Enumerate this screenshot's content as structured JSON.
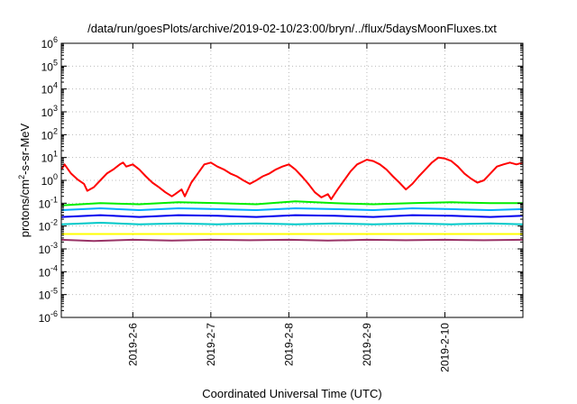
{
  "chart_data": {
    "type": "line",
    "title": "/data/run/goesPlots/archive/2019-02-10/23:00/bryn/../flux/5daysMoonFluxes.txt",
    "xlabel": "Coordinated Universal Time (UTC)",
    "ylabel_parts": {
      "pre": "protons/cm",
      "sup": "2",
      "post": "-s-sr-MeV"
    },
    "y_scale": "log",
    "ylim": [
      1e-06,
      1000000.0
    ],
    "y_tick_exponents": [
      -6,
      -5,
      -4,
      -3,
      -2,
      -1,
      0,
      1,
      2,
      3,
      4,
      5,
      6
    ],
    "y_tick_base": "10",
    "xlim": [
      "2019-02-05T02:00",
      "2019-02-11T00:00"
    ],
    "x_ticks": [
      {
        "label": "2019-2-6",
        "t": "2019-02-06T00:00"
      },
      {
        "label": "2019-2-7",
        "t": "2019-02-07T00:00"
      },
      {
        "label": "2019-2-8",
        "t": "2019-02-08T00:00"
      },
      {
        "label": "2019-2-9",
        "t": "2019-02-09T00:00"
      },
      {
        "label": "2019-2-10",
        "t": "2019-02-10T00:00"
      }
    ],
    "grid": true,
    "series": [
      {
        "color": "#ff0000",
        "points": [
          [
            "2019-02-05T02:00",
            3
          ],
          [
            "2019-02-05T03:00",
            5
          ],
          [
            "2019-02-05T05:00",
            2
          ],
          [
            "2019-02-05T07:00",
            1.1
          ],
          [
            "2019-02-05T09:00",
            0.7
          ],
          [
            "2019-02-05T10:00",
            0.35
          ],
          [
            "2019-02-05T12:00",
            0.5
          ],
          [
            "2019-02-05T14:00",
            1
          ],
          [
            "2019-02-05T16:00",
            2
          ],
          [
            "2019-02-05T18:00",
            3
          ],
          [
            "2019-02-05T20:00",
            5
          ],
          [
            "2019-02-05T21:00",
            6
          ],
          [
            "2019-02-05T22:00",
            4
          ],
          [
            "2019-02-06T00:00",
            5
          ],
          [
            "2019-02-06T02:00",
            3
          ],
          [
            "2019-02-06T04:00",
            1.5
          ],
          [
            "2019-02-06T06:00",
            0.8
          ],
          [
            "2019-02-06T08:00",
            0.5
          ],
          [
            "2019-02-06T10:00",
            0.3
          ],
          [
            "2019-02-06T12:00",
            0.2
          ],
          [
            "2019-02-06T13:00",
            0.25
          ],
          [
            "2019-02-06T15:00",
            0.4
          ],
          [
            "2019-02-06T16:00",
            0.2
          ],
          [
            "2019-02-06T18:00",
            0.8
          ],
          [
            "2019-02-06T20:00",
            2
          ],
          [
            "2019-02-06T22:00",
            5
          ],
          [
            "2019-02-07T00:00",
            6
          ],
          [
            "2019-02-07T02:00",
            4
          ],
          [
            "2019-02-07T04:00",
            3
          ],
          [
            "2019-02-07T06:00",
            2
          ],
          [
            "2019-02-07T08:00",
            1.5
          ],
          [
            "2019-02-07T10:00",
            1
          ],
          [
            "2019-02-07T12:00",
            0.7
          ],
          [
            "2019-02-07T14:00",
            1
          ],
          [
            "2019-02-07T16:00",
            1.5
          ],
          [
            "2019-02-07T18:00",
            2
          ],
          [
            "2019-02-07T20:00",
            3
          ],
          [
            "2019-02-07T22:00",
            4
          ],
          [
            "2019-02-08T00:00",
            5
          ],
          [
            "2019-02-08T02:00",
            3
          ],
          [
            "2019-02-08T04:00",
            1.5
          ],
          [
            "2019-02-08T06:00",
            0.7
          ],
          [
            "2019-02-08T08:00",
            0.3
          ],
          [
            "2019-02-08T10:00",
            0.18
          ],
          [
            "2019-02-08T12:00",
            0.25
          ],
          [
            "2019-02-08T13:00",
            0.15
          ],
          [
            "2019-02-08T15:00",
            0.4
          ],
          [
            "2019-02-08T17:00",
            1
          ],
          [
            "2019-02-08T19:00",
            2.5
          ],
          [
            "2019-02-08T21:00",
            5
          ],
          [
            "2019-02-09T00:00",
            8
          ],
          [
            "2019-02-09T02:00",
            7
          ],
          [
            "2019-02-09T04:00",
            5
          ],
          [
            "2019-02-09T06:00",
            3
          ],
          [
            "2019-02-09T08:00",
            1.5
          ],
          [
            "2019-02-09T10:00",
            0.8
          ],
          [
            "2019-02-09T12:00",
            0.4
          ],
          [
            "2019-02-09T14:00",
            0.7
          ],
          [
            "2019-02-09T16:00",
            1.5
          ],
          [
            "2019-02-09T18:00",
            3
          ],
          [
            "2019-02-09T20:00",
            6
          ],
          [
            "2019-02-09T22:00",
            10
          ],
          [
            "2019-02-10T00:00",
            9
          ],
          [
            "2019-02-10T02:00",
            7
          ],
          [
            "2019-02-10T04:00",
            4
          ],
          [
            "2019-02-10T06:00",
            2
          ],
          [
            "2019-02-10T08:00",
            1.2
          ],
          [
            "2019-02-10T10:00",
            0.8
          ],
          [
            "2019-02-10T12:00",
            1
          ],
          [
            "2019-02-10T14:00",
            2
          ],
          [
            "2019-02-10T16:00",
            4
          ],
          [
            "2019-02-10T18:00",
            5
          ],
          [
            "2019-02-10T20:00",
            6
          ],
          [
            "2019-02-10T22:00",
            5
          ],
          [
            "2019-02-11T00:00",
            6
          ]
        ]
      },
      {
        "color": "#00ee00",
        "points": [
          [
            "2019-02-05T02:00",
            0.08
          ],
          [
            "2019-02-05T14:00",
            0.1
          ],
          [
            "2019-02-06T02:00",
            0.09
          ],
          [
            "2019-02-06T14:00",
            0.11
          ],
          [
            "2019-02-07T02:00",
            0.1
          ],
          [
            "2019-02-07T14:00",
            0.09
          ],
          [
            "2019-02-08T02:00",
            0.12
          ],
          [
            "2019-02-08T14:00",
            0.1
          ],
          [
            "2019-02-09T02:00",
            0.09
          ],
          [
            "2019-02-09T14:00",
            0.1
          ],
          [
            "2019-02-10T02:00",
            0.11
          ],
          [
            "2019-02-10T14:00",
            0.1
          ],
          [
            "2019-02-11T00:00",
            0.1
          ]
        ]
      },
      {
        "color": "#00aaff",
        "points": [
          [
            "2019-02-05T02:00",
            0.05
          ],
          [
            "2019-02-05T14:00",
            0.06
          ],
          [
            "2019-02-06T02:00",
            0.05
          ],
          [
            "2019-02-06T14:00",
            0.06
          ],
          [
            "2019-02-07T02:00",
            0.055
          ],
          [
            "2019-02-07T14:00",
            0.05
          ],
          [
            "2019-02-08T02:00",
            0.06
          ],
          [
            "2019-02-08T14:00",
            0.055
          ],
          [
            "2019-02-09T02:00",
            0.05
          ],
          [
            "2019-02-09T14:00",
            0.06
          ],
          [
            "2019-02-10T02:00",
            0.055
          ],
          [
            "2019-02-10T14:00",
            0.05
          ],
          [
            "2019-02-11T00:00",
            0.055
          ]
        ]
      },
      {
        "color": "#0000ee",
        "points": [
          [
            "2019-02-05T02:00",
            0.025
          ],
          [
            "2019-02-05T14:00",
            0.03
          ],
          [
            "2019-02-06T02:00",
            0.025
          ],
          [
            "2019-02-06T14:00",
            0.03
          ],
          [
            "2019-02-07T02:00",
            0.028
          ],
          [
            "2019-02-07T14:00",
            0.025
          ],
          [
            "2019-02-08T02:00",
            0.03
          ],
          [
            "2019-02-08T14:00",
            0.028
          ],
          [
            "2019-02-09T02:00",
            0.025
          ],
          [
            "2019-02-09T14:00",
            0.03
          ],
          [
            "2019-02-10T02:00",
            0.028
          ],
          [
            "2019-02-10T14:00",
            0.025
          ],
          [
            "2019-02-11T00:00",
            0.028
          ]
        ]
      },
      {
        "color": "#00c8c8",
        "points": [
          [
            "2019-02-05T02:00",
            0.012
          ],
          [
            "2019-02-05T14:00",
            0.014
          ],
          [
            "2019-02-06T02:00",
            0.012
          ],
          [
            "2019-02-06T14:00",
            0.013
          ],
          [
            "2019-02-07T02:00",
            0.012
          ],
          [
            "2019-02-07T14:00",
            0.013
          ],
          [
            "2019-02-08T02:00",
            0.012
          ],
          [
            "2019-02-08T14:00",
            0.013
          ],
          [
            "2019-02-09T02:00",
            0.012
          ],
          [
            "2019-02-09T14:00",
            0.013
          ],
          [
            "2019-02-10T02:00",
            0.012
          ],
          [
            "2019-02-10T14:00",
            0.013
          ],
          [
            "2019-02-11T00:00",
            0.012
          ]
        ]
      },
      {
        "color": "#ffff00",
        "points": [
          [
            "2019-02-05T02:00",
            0.0045
          ],
          [
            "2019-02-06T00:00",
            0.0045
          ],
          [
            "2019-02-07T00:00",
            0.0045
          ],
          [
            "2019-02-08T00:00",
            0.0045
          ],
          [
            "2019-02-09T00:00",
            0.0045
          ],
          [
            "2019-02-10T00:00",
            0.0045
          ],
          [
            "2019-02-11T00:00",
            0.0045
          ]
        ]
      },
      {
        "color": "#993366",
        "points": [
          [
            "2019-02-05T02:00",
            0.0025
          ],
          [
            "2019-02-05T12:00",
            0.0022
          ],
          [
            "2019-02-06T00:00",
            0.0025
          ],
          [
            "2019-02-06T12:00",
            0.0023
          ],
          [
            "2019-02-07T00:00",
            0.0025
          ],
          [
            "2019-02-07T12:00",
            0.0024
          ],
          [
            "2019-02-08T00:00",
            0.0025
          ],
          [
            "2019-02-08T12:00",
            0.0023
          ],
          [
            "2019-02-09T00:00",
            0.0025
          ],
          [
            "2019-02-09T12:00",
            0.0024
          ],
          [
            "2019-02-10T00:00",
            0.0025
          ],
          [
            "2019-02-10T12:00",
            0.0024
          ],
          [
            "2019-02-11T00:00",
            0.0025
          ]
        ]
      }
    ]
  }
}
